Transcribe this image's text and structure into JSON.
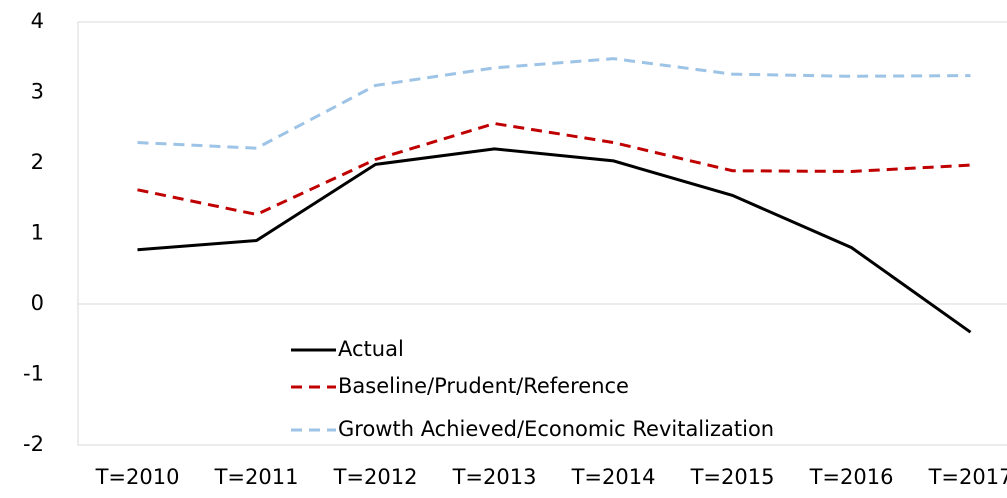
{
  "chart_data": {
    "type": "line",
    "categories": [
      "T=2010",
      "T=2011",
      "T=2012",
      "T=2013",
      "T=2014",
      "T=2015",
      "T=2016",
      "T=2017"
    ],
    "series": [
      {
        "name": "Actual",
        "color": "#000000",
        "dash": "solid",
        "values": [
          0.77,
          0.9,
          1.98,
          2.2,
          2.03,
          1.54,
          0.8,
          -0.4
        ]
      },
      {
        "name": "Baseline/Prudent/Reference",
        "color": "#c00000",
        "dash": "dashed",
        "values": [
          1.62,
          1.27,
          2.05,
          2.56,
          2.29,
          1.89,
          1.88,
          1.97
        ]
      },
      {
        "name": "Growth Achieved/Economic Revitalization",
        "color": "#9dc3e6",
        "dash": "dashed",
        "values": [
          2.29,
          2.21,
          3.1,
          3.35,
          3.48,
          3.26,
          3.23,
          3.24
        ]
      }
    ],
    "ylim": [
      -2,
      4
    ],
    "yticks": [
      -2,
      -1,
      0,
      1,
      2,
      3,
      4
    ],
    "grid": false
  }
}
